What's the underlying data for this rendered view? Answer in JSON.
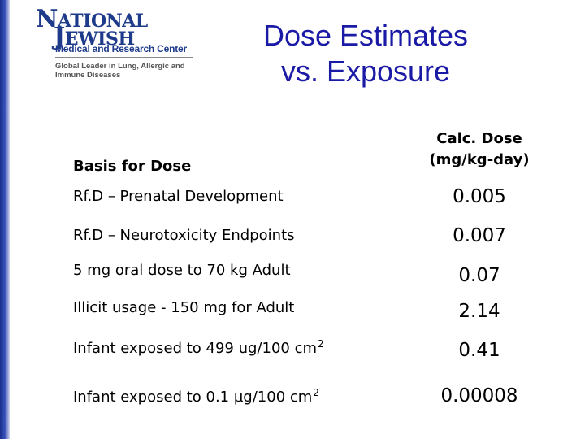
{
  "logo": {
    "line1_first": "N",
    "line1_rest": "ATIONAL",
    "line2_first": "J",
    "line2_rest": "EWISH",
    "subtitle": "Medical and Research Center",
    "tagline": "Global Leader in Lung, Allergic and Immune Diseases"
  },
  "slide": {
    "title_line1": "Dose Estimates",
    "title_line2": "vs. Exposure"
  },
  "table": {
    "header_basis": "Basis for Dose",
    "header_calc_line1": "Calc. Dose",
    "header_calc_line2": "(mg/kg-day)",
    "rows": [
      {
        "label": "Rf.D – Prenatal Development",
        "value": "0.005"
      },
      {
        "label": "Rf.D – Neurotoxicity Endpoints",
        "value": "0.007"
      },
      {
        "label": "5 mg oral dose to 70 kg Adult",
        "value": "0.07"
      },
      {
        "label": "Illicit usage - 150 mg for Adult",
        "value": "2.14"
      },
      {
        "label": "Infant exposed to 499 ug/100 cm",
        "sup": "2",
        "value": "0.41"
      },
      {
        "label": "Infant exposed to 0.1  µg/100 cm",
        "sup": "2",
        "value": "0.00008"
      }
    ]
  },
  "colors": {
    "title": "#1a1aa6",
    "logo": "#1e3a8a",
    "side_bar": "#1a2f8c"
  }
}
